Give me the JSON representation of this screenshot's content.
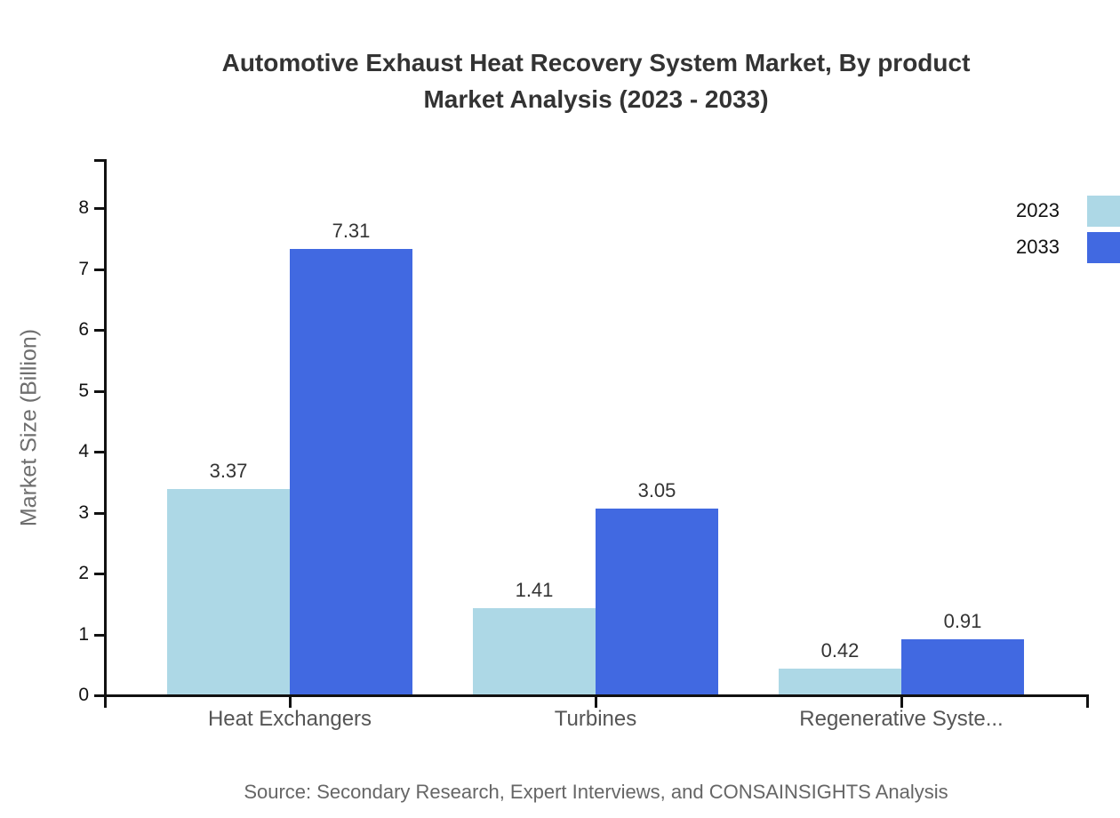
{
  "title": {
    "line1": "Automotive Exhaust Heat Recovery System Market, By product",
    "line2": "Market Analysis (2023 - 2033)"
  },
  "chart_data": {
    "type": "bar",
    "categories": [
      "Heat Exchangers",
      "Turbines",
      "Regenerative Syste..."
    ],
    "series": [
      {
        "name": "2023",
        "color": "#ADD8E6",
        "values": [
          3.37,
          1.41,
          0.42
        ]
      },
      {
        "name": "2033",
        "color": "#4169E1",
        "values": [
          7.31,
          3.05,
          0.91
        ]
      }
    ],
    "value_labels": [
      "3.37",
      "7.31",
      "1.41",
      "3.05",
      "0.42",
      "0.91"
    ],
    "title": "Automotive Exhaust Heat Recovery System Market, By product Market Analysis (2023 - 2033)",
    "xlabel": "",
    "ylabel": "Market Size (Billion)",
    "yticks": [
      0,
      1,
      2,
      3,
      4,
      5,
      6,
      7,
      8
    ],
    "ylim": [
      0,
      8.8
    ],
    "grid": false,
    "legend_position": "top-right",
    "legend_entries": [
      "2023",
      "2033"
    ]
  },
  "source": "Source: Secondary Research, Expert Interviews, and CONSAINSIGHTS Analysis",
  "colors": {
    "series_2023": "#ADD8E6",
    "series_2033": "#4169E1",
    "axis": "#111111",
    "title_text": "#333333",
    "tick_label_text": "#111111",
    "category_label_text": "#555555",
    "value_label_text": "#333333",
    "y_axis_title_text": "#6e6e6e",
    "source_text": "#666666",
    "legend_text": "#111111",
    "background": "#ffffff"
  }
}
